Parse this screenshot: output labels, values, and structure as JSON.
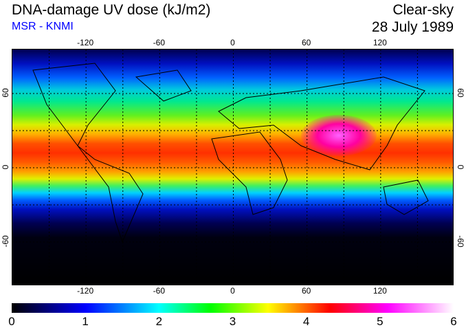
{
  "header": {
    "title": "DNA-damage UV dose (kJ/m2)",
    "source": "MSR - KNMI",
    "condition": "Clear-sky",
    "date": "28 July 1989"
  },
  "map": {
    "lon_ticks": [
      "-120",
      "-60",
      "0",
      "60",
      "120"
    ],
    "lat_ticks": [
      "60",
      "0",
      "-60"
    ]
  },
  "colorbar": {
    "ticks": [
      "0",
      "1",
      "2",
      "3",
      "4",
      "5",
      "6"
    ],
    "colors": [
      "#000000",
      "#0000ff",
      "#00ffff",
      "#00ff00",
      "#ffff00",
      "#ff0000",
      "#ff00ff",
      "#ffffff"
    ]
  }
}
